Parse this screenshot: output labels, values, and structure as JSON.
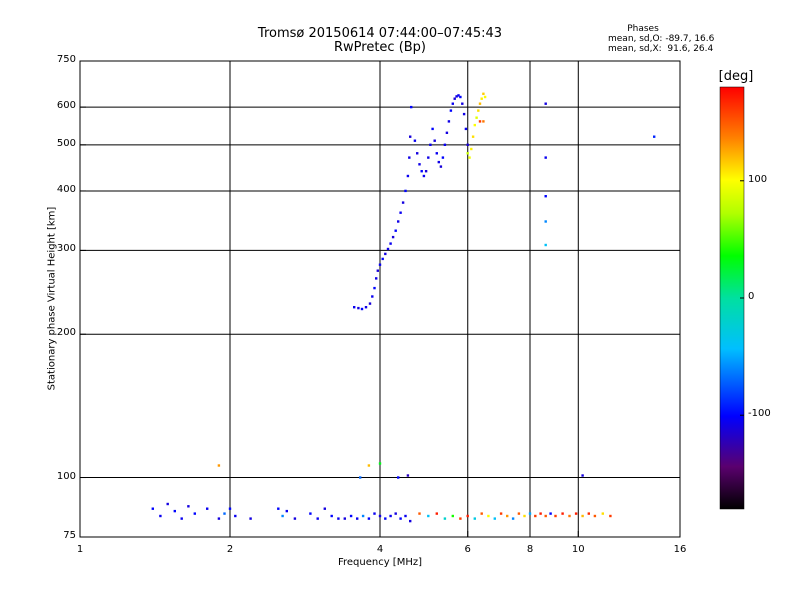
{
  "header": {
    "title": "Tromsø 20150614 07:44:00–07:45:43",
    "subtitle": "RwPretec (Bp)"
  },
  "stats": {
    "title": "Phases",
    "line_o": "mean, sd,O: -89.7, 16.6",
    "line_x": "mean, sd,X:  91.6, 26.4"
  },
  "colorbar": {
    "title": "[deg]",
    "ticks": [
      "100",
      "0",
      "-100"
    ],
    "tick_values": [
      100,
      0,
      -100
    ],
    "range": [
      -180,
      180
    ],
    "colormap": "rainbow"
  },
  "chart_data": {
    "type": "scatter",
    "xlabel": "Frequency [MHz]",
    "ylabel": "Stationary phase Virtual Height [km]",
    "x_scale": "log",
    "y_scale": "log",
    "xlim": [
      1,
      16
    ],
    "ylim": [
      75,
      750
    ],
    "xticks": [
      1,
      2,
      4,
      6,
      8,
      10,
      16
    ],
    "xtick_labels": [
      "1",
      "2",
      "4",
      "6",
      "8",
      "10",
      "16"
    ],
    "yticks": [
      75,
      100,
      200,
      300,
      400,
      500,
      600,
      750
    ],
    "ytick_labels": [
      "75",
      "100",
      "200",
      "300",
      "400",
      "500",
      "600",
      "750"
    ],
    "grid": true,
    "color_encodes": "phase [deg]",
    "series": [
      {
        "points": [
          [
            3.55,
            228,
            -105
          ],
          [
            3.62,
            227,
            -110
          ],
          [
            3.68,
            226,
            -100
          ],
          [
            3.75,
            228,
            -108
          ],
          [
            3.82,
            232,
            -112
          ],
          [
            3.86,
            240,
            -105
          ],
          [
            3.9,
            250,
            -100
          ],
          [
            3.93,
            262,
            -108
          ],
          [
            3.96,
            272,
            -112
          ],
          [
            4.0,
            280,
            -105
          ],
          [
            4.05,
            288,
            -100
          ],
          [
            4.1,
            295,
            -110
          ],
          [
            4.15,
            302,
            -108
          ],
          [
            4.2,
            310,
            -105
          ],
          [
            4.25,
            320,
            -112
          ],
          [
            4.3,
            330,
            -100
          ],
          [
            4.35,
            345,
            -108
          ],
          [
            4.4,
            360,
            -105
          ],
          [
            4.45,
            378,
            -110
          ],
          [
            4.5,
            400,
            -100
          ],
          [
            4.55,
            430,
            -105
          ],
          [
            4.58,
            470,
            -108
          ],
          [
            4.6,
            520,
            -112
          ],
          [
            4.62,
            600,
            -100
          ],
          [
            4.7,
            510,
            -105
          ],
          [
            4.75,
            480,
            -110
          ],
          [
            4.8,
            455,
            -108
          ],
          [
            4.85,
            440,
            -100
          ],
          [
            4.9,
            430,
            -105
          ],
          [
            4.95,
            440,
            -112
          ],
          [
            5.0,
            470,
            -108
          ],
          [
            5.05,
            500,
            -105
          ],
          [
            5.1,
            540,
            -100
          ],
          [
            5.15,
            510,
            -110
          ],
          [
            5.2,
            480,
            -105
          ],
          [
            5.25,
            460,
            -108
          ],
          [
            5.3,
            450,
            -112
          ],
          [
            5.35,
            470,
            -100
          ],
          [
            5.4,
            500,
            -105
          ],
          [
            5.45,
            530,
            -110
          ],
          [
            5.5,
            560,
            -108
          ],
          [
            5.55,
            590,
            -100
          ],
          [
            5.6,
            610,
            -105
          ],
          [
            5.65,
            625,
            -112
          ],
          [
            5.7,
            632,
            -108
          ],
          [
            5.75,
            635,
            -105
          ],
          [
            5.8,
            630,
            -100
          ],
          [
            5.85,
            610,
            -110
          ],
          [
            5.9,
            580,
            -108
          ],
          [
            5.95,
            540,
            -105
          ],
          [
            6.0,
            500,
            -112
          ],
          [
            6.0,
            480,
            80
          ],
          [
            6.05,
            470,
            95
          ],
          [
            6.1,
            490,
            105
          ],
          [
            6.15,
            520,
            110
          ],
          [
            6.2,
            550,
            100
          ],
          [
            6.25,
            570,
            90
          ],
          [
            6.3,
            590,
            110
          ],
          [
            6.35,
            610,
            120
          ],
          [
            6.4,
            625,
            105
          ],
          [
            6.45,
            640,
            115
          ],
          [
            6.5,
            630,
            100
          ],
          [
            6.45,
            560,
            140
          ],
          [
            6.35,
            560,
            160
          ],
          [
            8.6,
            610,
            -110
          ],
          [
            8.6,
            470,
            -105
          ],
          [
            8.6,
            390,
            -100
          ],
          [
            8.6,
            345,
            -60
          ],
          [
            8.6,
            308,
            -40
          ],
          [
            14.2,
            520,
            -90
          ],
          [
            1.9,
            106,
            130
          ],
          [
            3.65,
            100,
            -70
          ],
          [
            3.8,
            106,
            120
          ],
          [
            4.0,
            107,
            30
          ],
          [
            4.35,
            100,
            -100
          ],
          [
            4.55,
            101,
            -120
          ],
          [
            10.2,
            101,
            -110
          ]
        ]
      },
      {
        "points": [
          [
            1.4,
            86,
            -100
          ],
          [
            1.45,
            83,
            -105
          ],
          [
            1.5,
            88,
            -110
          ],
          [
            1.55,
            85,
            -100
          ],
          [
            1.6,
            82,
            -105
          ],
          [
            1.65,
            87,
            -110
          ],
          [
            1.7,
            84,
            -100
          ],
          [
            1.8,
            86,
            -105
          ],
          [
            1.9,
            82,
            -110
          ],
          [
            1.95,
            84,
            -70
          ],
          [
            2.0,
            86,
            -100
          ],
          [
            2.05,
            83,
            -105
          ],
          [
            2.2,
            82,
            -110
          ],
          [
            2.5,
            86,
            -100
          ],
          [
            2.55,
            83,
            -60
          ],
          [
            2.6,
            85,
            -105
          ],
          [
            2.7,
            82,
            -110
          ],
          [
            2.9,
            84,
            -100
          ],
          [
            3.0,
            82,
            -105
          ],
          [
            3.1,
            86,
            -110
          ],
          [
            3.2,
            83,
            -100
          ],
          [
            3.3,
            82,
            -105
          ],
          [
            3.4,
            82,
            -110
          ],
          [
            3.5,
            83,
            -100
          ],
          [
            3.6,
            82,
            -105
          ],
          [
            3.7,
            83,
            -60
          ],
          [
            3.8,
            82,
            -100
          ],
          [
            3.9,
            84,
            -105
          ],
          [
            4.0,
            83,
            -110
          ],
          [
            4.1,
            82,
            -100
          ],
          [
            4.2,
            83,
            -105
          ],
          [
            4.3,
            84,
            -110
          ],
          [
            4.4,
            82,
            -100
          ],
          [
            4.5,
            83,
            -105
          ],
          [
            4.6,
            81,
            -110
          ],
          [
            4.8,
            84,
            150
          ],
          [
            5.0,
            83,
            -40
          ],
          [
            5.2,
            84,
            170
          ],
          [
            5.4,
            82,
            -20
          ],
          [
            5.6,
            83,
            40
          ],
          [
            5.8,
            82,
            160
          ],
          [
            6.0,
            83,
            170
          ],
          [
            6.2,
            82,
            -30
          ],
          [
            6.4,
            84,
            150
          ],
          [
            6.6,
            83,
            100
          ],
          [
            6.8,
            82,
            -40
          ],
          [
            7.0,
            84,
            160
          ],
          [
            7.2,
            83,
            130
          ],
          [
            7.4,
            82,
            -60
          ],
          [
            7.6,
            84,
            150
          ],
          [
            7.8,
            83,
            110
          ],
          [
            8.0,
            84,
            -50
          ],
          [
            8.2,
            83,
            160
          ],
          [
            8.4,
            84,
            170
          ],
          [
            8.6,
            83,
            150
          ],
          [
            8.8,
            84,
            -100
          ],
          [
            9.0,
            83,
            160
          ],
          [
            9.3,
            84,
            170
          ],
          [
            9.6,
            83,
            140
          ],
          [
            9.9,
            84,
            170
          ],
          [
            10.2,
            83,
            120
          ],
          [
            10.5,
            84,
            165
          ],
          [
            10.8,
            83,
            150
          ],
          [
            11.2,
            84,
            110
          ],
          [
            11.6,
            83,
            160
          ]
        ]
      }
    ]
  }
}
